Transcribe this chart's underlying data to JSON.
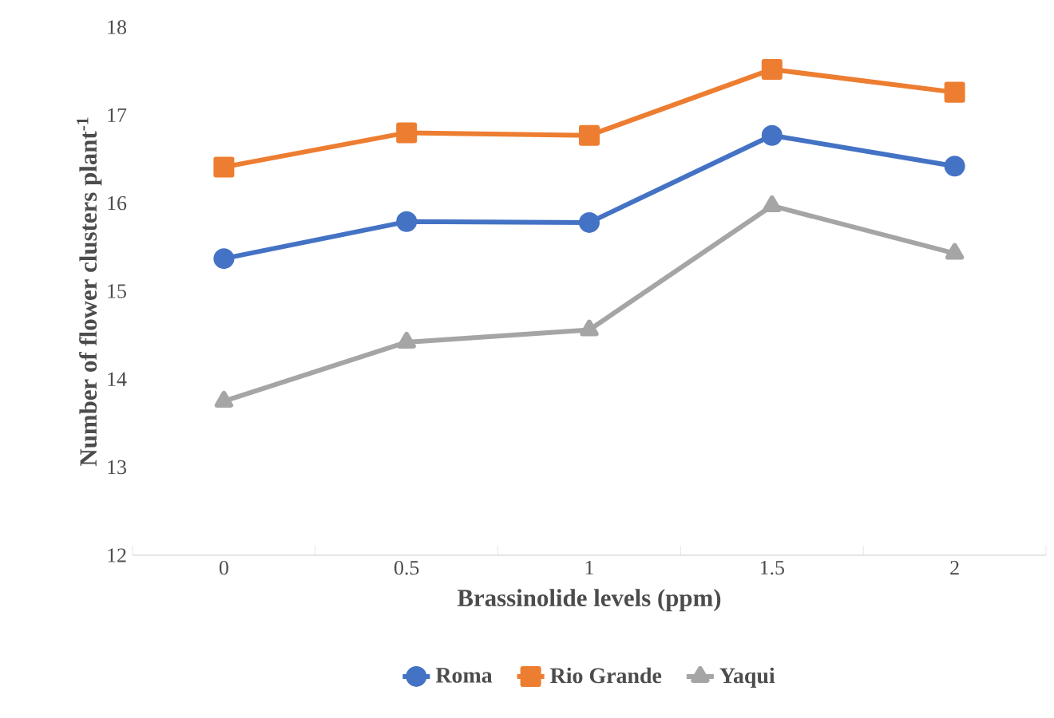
{
  "chart_data": {
    "type": "line",
    "xlabel": "Brassinolide levels (ppm)",
    "ylabel": "Number of flower clusters plant$^{-1}$",
    "categories": [
      "0",
      "0.5",
      "1",
      "1.5",
      "2"
    ],
    "series": [
      {
        "name": "Roma",
        "color": "#4472c4",
        "marker": "circle",
        "values": [
          15.37,
          15.79,
          15.78,
          16.77,
          16.42
        ]
      },
      {
        "name": "Rio Grande",
        "color": "#ed7d31",
        "marker": "square",
        "values": [
          16.41,
          16.8,
          16.77,
          17.52,
          17.26
        ]
      },
      {
        "name": "Yaqui",
        "color": "#a5a5a5",
        "marker": "triangle",
        "values": [
          13.75,
          14.42,
          14.56,
          15.97,
          15.43
        ]
      }
    ],
    "ylim": [
      12,
      18
    ],
    "yticks": [
      12,
      13,
      14,
      15,
      16,
      17,
      18
    ],
    "grid": false,
    "legend": "bottom"
  }
}
